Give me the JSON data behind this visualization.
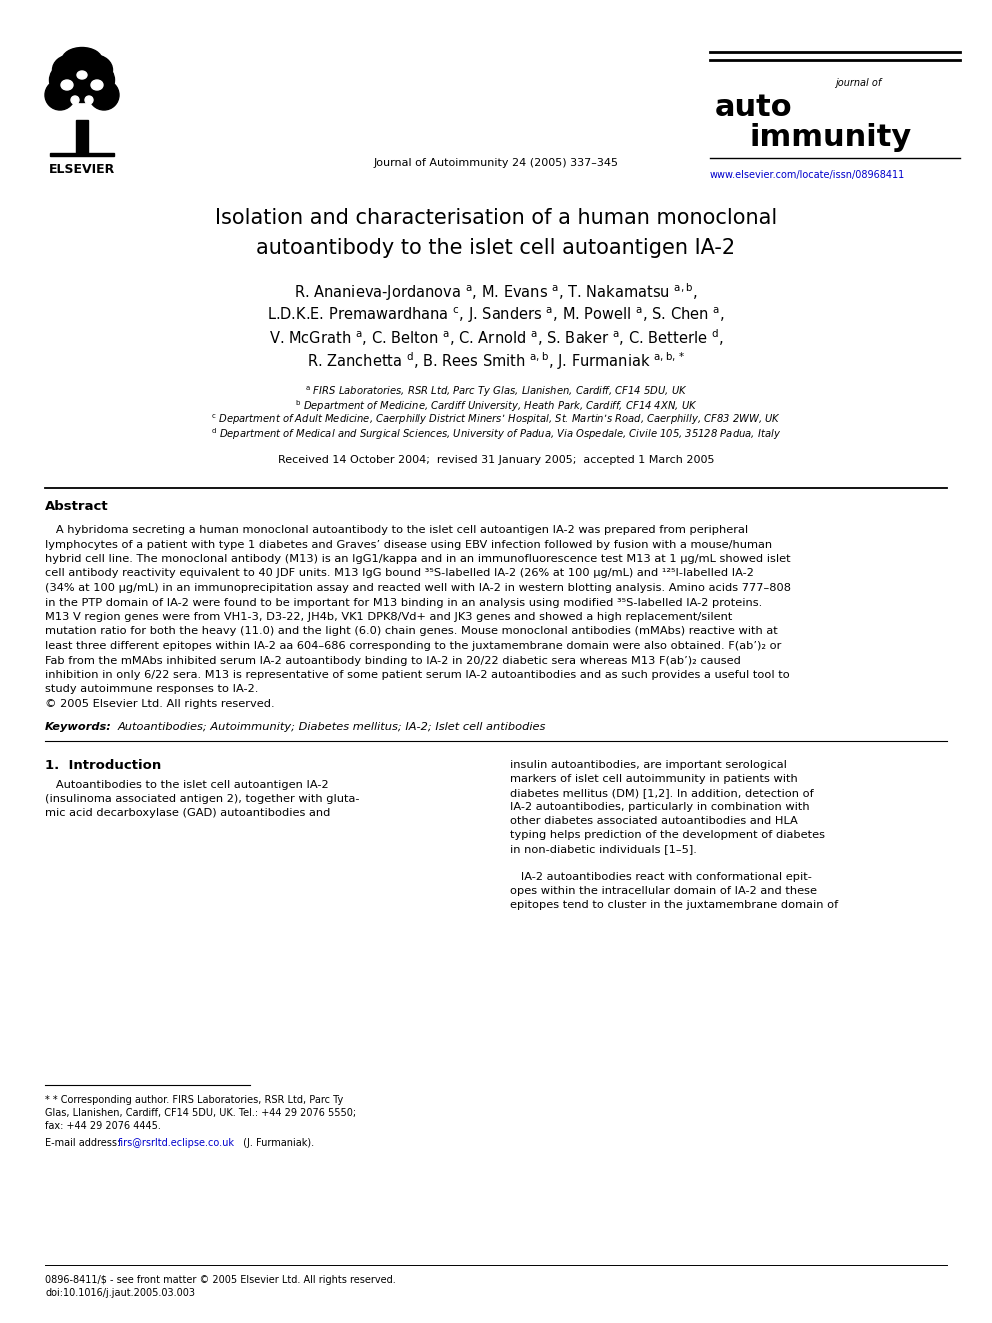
{
  "bg_color": "#ffffff",
  "page_width": 9.92,
  "page_height": 13.23,
  "header_journal_center": "Journal of Autoimmunity 24 (2005) 337–345",
  "header_url": "www.elsevier.com/locate/issn/08968411",
  "title_line1": "Isolation and characterisation of a human monoclonal",
  "title_line2": "autoantibody to the islet cell autoantigen IA-2",
  "affil_a": "FIRS Laboratories, RSR Ltd, Parc Ty Glas, Llanishen, Cardiff, CF14 5DU, UK",
  "affil_b": "Department of Medicine, Cardiff University, Heath Park, Cardiff, CF14 4XN, UK",
  "affil_c": "Department of Adult Medicine, Caerphilly District Miners’ Hospital, St. Martin’s Road, Caerphilly, CF83 2WW, UK",
  "affil_d": "Department of Medical and Surgical Sciences, University of Padua, Via Ospedale, Civile 105, 35128 Padua, Italy",
  "received_text": "Received 14 October 2004;  revised 31 January 2005;  accepted 1 March 2005",
  "abstract_title": "Abstract",
  "abstract_lines": [
    "   A hybridoma secreting a human monoclonal autoantibody to the islet cell autoantigen IA-2 was prepared from peripheral",
    "lymphocytes of a patient with type 1 diabetes and Graves’ disease using EBV infection followed by fusion with a mouse/human",
    "hybrid cell line. The monoclonal antibody (M13) is an IgG1/kappa and in an immunofluorescence test M13 at 1 μg/mL showed islet",
    "cell antibody reactivity equivalent to 40 JDF units. M13 IgG bound ³⁵S-labelled IA-2 (26% at 100 μg/mL) and ¹²⁵I-labelled IA-2",
    "(34% at 100 μg/mL) in an immunoprecipitation assay and reacted well with IA-2 in western blotting analysis. Amino acids 777–808",
    "in the PTP domain of IA-2 were found to be important for M13 binding in an analysis using modified ³⁵S-labelled IA-2 proteins.",
    "M13 V region genes were from VH1-3, D3-22, JH4b, VK1 DPK8/Vd+ and JK3 genes and showed a high replacement/silent",
    "mutation ratio for both the heavy (11.0) and the light (6.0) chain genes. Mouse monoclonal antibodies (mMAbs) reactive with at",
    "least three different epitopes within IA-2 aa 604–686 corresponding to the juxtamembrane domain were also obtained. F(ab’)₂ or",
    "Fab from the mMAbs inhibited serum IA-2 autoantibody binding to IA-2 in 20/22 diabetic sera whereas M13 F(ab’)₂ caused",
    "inhibition in only 6/22 sera. M13 is representative of some patient serum IA-2 autoantibodies and as such provides a useful tool to",
    "study autoimmune responses to IA-2.",
    "© 2005 Elsevier Ltd. All rights reserved."
  ],
  "keywords_label": "Keywords:",
  "keywords_text": "Autoantibodies; Autoimmunity; Diabetes mellitus; IA-2; Islet cell antibodies",
  "section1_title": "1.  Introduction",
  "col1_lines": [
    "   Autoantibodies to the islet cell autoantigen IA-2",
    "(insulinoma associated antigen 2), together with gluta-",
    "mic acid decarboxylase (GAD) autoantibodies and"
  ],
  "col2_lines": [
    "insulin autoantibodies, are important serological",
    "markers of islet cell autoimmunity in patients with",
    "diabetes mellitus (DM) [1,2]. In addition, detection of",
    "IA-2 autoantibodies, particularly in combination with",
    "other diabetes associated autoantibodies and HLA",
    "typing helps prediction of the development of diabetes",
    "in non-diabetic individuals [1–5].",
    "",
    "   IA-2 autoantibodies react with conformational epit-",
    "opes within the intracellular domain of IA-2 and these",
    "epitopes tend to cluster in the juxtamembrane domain of"
  ],
  "footnote_line1": "* Corresponding author. FIRS Laboratories, RSR Ltd, Parc Ty",
  "footnote_line2": "Glas, Llanishen, Cardiff, CF14 5DU, UK. Tel.: +44 29 2076 5550;",
  "footnote_line3": "fax: +44 29 2076 4445.",
  "footnote_email_label": "E-mail address:",
  "footnote_email": "firs@rsrltd.eclipse.co.uk",
  "footnote_email_suffix": " (J. Furmaniak).",
  "bottom_text1": "0896-8411/$ - see front matter © 2005 Elsevier Ltd. All rights reserved.",
  "bottom_text2": "doi:10.1016/j.jaut.2005.03.003",
  "line_color": "#000000",
  "blue_color": "#0000cc",
  "text_color": "#000000",
  "gray_line": "#333333"
}
